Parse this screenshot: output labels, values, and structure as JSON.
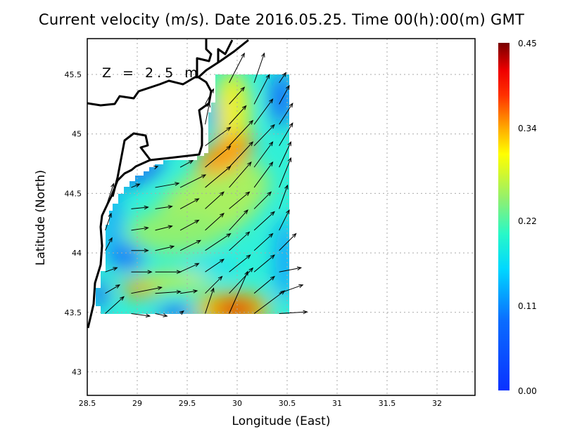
{
  "title": "Current velocity (m/s). Date 2016.05.25. Time 00(h):00(m) GMT",
  "annotation": "Z = 2.5 m",
  "chart_data": {
    "type": "heatmap",
    "title": "Current velocity (m/s). Date 2016.05.25. Time 00(h):00(m) GMT",
    "xlabel": "Longitude (East)",
    "ylabel": "Latitude (North)",
    "xlim": [
      28.5,
      32.38
    ],
    "ylim": [
      42.8,
      45.8
    ],
    "xticks": [
      "28.5",
      "29",
      "29.5",
      "30",
      "30.5",
      "31",
      "31.5",
      "32"
    ],
    "yticks": [
      "43",
      "43.5",
      "44",
      "44.5",
      "45",
      "45.5"
    ],
    "grid": true,
    "colorbar": {
      "range": [
        0,
        0.45
      ],
      "ticks": [
        "0.00",
        "0.11",
        "0.22",
        "0.34",
        "0.45"
      ],
      "colormap": "jet",
      "placement": "right"
    },
    "vector_lons": [
      28.68,
      28.94,
      29.18,
      29.43,
      29.68,
      29.92,
      30.17,
      30.42
    ],
    "vector_lats": [
      43.49,
      43.66,
      43.84,
      44.02,
      44.19,
      44.37,
      44.55,
      44.72,
      44.9,
      45.08,
      45.25,
      45.43
    ],
    "vectors_uv": [
      [
        [
          0.22,
          0.2
        ],
        [
          0.22,
          -0.03
        ],
        [
          0.14,
          -0.03
        ],
        [
          0.04,
          0.03
        ],
        [
          0.1,
          0.3
        ],
        [
          0.22,
          0.5
        ],
        [
          0.36,
          0.27
        ],
        [
          0.33,
          0.02
        ]
      ],
      [
        [
          0.17,
          0.1
        ],
        [
          0.36,
          0.07
        ],
        [
          0.3,
          0.02
        ],
        [
          0.2,
          0.03
        ],
        [
          0.2,
          0.2
        ],
        [
          0.28,
          0.3
        ],
        [
          0.24,
          0.2
        ],
        [
          0.28,
          0.1
        ]
      ],
      [
        [
          0.14,
          0.05
        ],
        [
          0.24,
          0.0
        ],
        [
          0.3,
          0.0
        ],
        [
          0.22,
          0.1
        ],
        [
          0.22,
          0.15
        ],
        [
          0.25,
          0.2
        ],
        [
          0.24,
          0.2
        ],
        [
          0.26,
          0.05
        ]
      ],
      [
        [
          0.08,
          0.15
        ],
        [
          0.2,
          0.0
        ],
        [
          0.22,
          0.05
        ],
        [
          0.24,
          0.12
        ],
        [
          0.3,
          0.2
        ],
        [
          0.24,
          0.22
        ],
        [
          0.22,
          0.2
        ],
        [
          0.2,
          0.2
        ]
      ],
      [
        [
          0.07,
          0.2
        ],
        [
          0.2,
          0.03
        ],
        [
          0.2,
          0.05
        ],
        [
          0.22,
          0.12
        ],
        [
          0.22,
          0.2
        ],
        [
          0.22,
          0.24
        ],
        [
          0.24,
          0.22
        ],
        [
          0.12,
          0.24
        ]
      ],
      [
        [
          0.1,
          0.3
        ],
        [
          0.2,
          0.02
        ],
        [
          0.2,
          0.03
        ],
        [
          0.22,
          0.12
        ],
        [
          0.22,
          0.2
        ],
        [
          0.24,
          0.2
        ],
        [
          0.2,
          0.2
        ],
        [
          0.1,
          0.28
        ]
      ],
      [
        [
          0,
          0
        ],
        [
          0.1,
          0.04
        ],
        [
          0.28,
          0.05
        ],
        [
          0.3,
          0.15
        ],
        [
          0.3,
          0.25
        ],
        [
          0.26,
          0.3
        ],
        [
          0.22,
          0.3
        ],
        [
          0.14,
          0.35
        ]
      ],
      [
        [
          0,
          0
        ],
        [
          0,
          0
        ],
        [
          0.03,
          0.01
        ],
        [
          0.15,
          0.08
        ],
        [
          0.3,
          0.25
        ],
        [
          0.28,
          0.3
        ],
        [
          0.22,
          0.3
        ],
        [
          0.14,
          0.3
        ]
      ],
      [
        [
          0,
          0
        ],
        [
          0,
          0
        ],
        [
          0,
          0
        ],
        [
          0,
          0
        ],
        [
          0.3,
          0.22
        ],
        [
          0.28,
          0.3
        ],
        [
          0.24,
          0.25
        ],
        [
          0.16,
          0.27
        ]
      ],
      [
        [
          0,
          0
        ],
        [
          0,
          0
        ],
        [
          0,
          0
        ],
        [
          0,
          0
        ],
        [
          0.05,
          0.25
        ],
        [
          0.2,
          0.22
        ],
        [
          0.22,
          0.3
        ],
        [
          0.16,
          0.25
        ]
      ],
      [
        [
          0,
          0
        ],
        [
          0,
          0
        ],
        [
          0,
          0
        ],
        [
          0,
          0
        ],
        [
          0.1,
          0.18
        ],
        [
          0.18,
          0.2
        ],
        [
          0.18,
          0.35
        ],
        [
          0.12,
          0.22
        ]
      ],
      [
        [
          0,
          0
        ],
        [
          0,
          0
        ],
        [
          0,
          0
        ],
        [
          0,
          0
        ],
        [
          0,
          0
        ],
        [
          0.18,
          0.35
        ],
        [
          0.12,
          0.35
        ],
        [
          0.08,
          0.12
        ]
      ]
    ]
  }
}
